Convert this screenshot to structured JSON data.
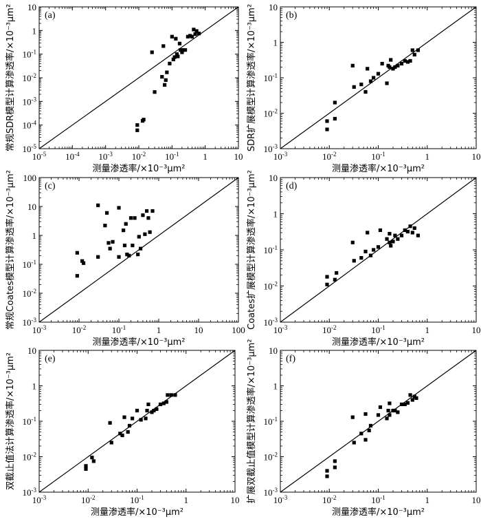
{
  "figure": {
    "axis_color": "#000000",
    "marker_color": "#000000",
    "reference_line": "1:1"
  },
  "chart_data": [
    {
      "type": "scatter",
      "panel_label": "(a)",
      "xlabel": "测量渗透率/×10⁻³μm²",
      "ylabel": "常规SDR模型计算渗透率/×10⁻³μm²",
      "x_exp_range": [
        -5,
        1
      ],
      "y_exp_range": [
        -5,
        1
      ],
      "x_ticks": [
        {
          "m": "10",
          "e": "-5"
        },
        {
          "m": "10",
          "e": "-4"
        },
        {
          "m": "10",
          "e": "-3"
        },
        {
          "m": "10",
          "e": "-2"
        },
        {
          "m": "10",
          "e": "-1"
        },
        {
          "m": "1",
          "e": ""
        },
        {
          "m": "10",
          "e": ""
        }
      ],
      "y_ticks": [
        {
          "m": "10",
          "e": "-5"
        },
        {
          "m": "10",
          "e": "-4"
        },
        {
          "m": "10",
          "e": "-3"
        },
        {
          "m": "10",
          "e": "-2"
        },
        {
          "m": "10",
          "e": "-1"
        },
        {
          "m": "1",
          "e": ""
        },
        {
          "m": "10",
          "e": ""
        }
      ],
      "points": [
        [
          0.009,
          6e-05
        ],
        [
          0.009,
          0.0001
        ],
        [
          0.013,
          0.00015
        ],
        [
          0.014,
          0.00017
        ],
        [
          0.025,
          0.12
        ],
        [
          0.03,
          0.0025
        ],
        [
          0.05,
          0.011
        ],
        [
          0.055,
          0.22
        ],
        [
          0.06,
          0.005
        ],
        [
          0.065,
          0.008
        ],
        [
          0.07,
          0.017
        ],
        [
          0.085,
          0.04
        ],
        [
          0.1,
          0.55
        ],
        [
          0.11,
          0.06
        ],
        [
          0.12,
          0.075
        ],
        [
          0.13,
          0.45
        ],
        [
          0.14,
          0.1
        ],
        [
          0.15,
          0.08
        ],
        [
          0.17,
          0.28
        ],
        [
          0.18,
          0.15
        ],
        [
          0.2,
          0.12
        ],
        [
          0.21,
          0.15
        ],
        [
          0.25,
          0.15
        ],
        [
          0.3,
          0.55
        ],
        [
          0.35,
          0.6
        ],
        [
          0.4,
          0.55
        ],
        [
          0.45,
          1.1
        ],
        [
          0.5,
          0.7
        ],
        [
          0.55,
          0.95
        ],
        [
          0.65,
          0.75
        ]
      ]
    },
    {
      "type": "scatter",
      "panel_label": "(b)",
      "xlabel": "测量渗透率/×10⁻³μm²",
      "ylabel": "SDR扩展模型计算渗透率/×10⁻³μm²",
      "x_exp_range": [
        -3,
        1
      ],
      "y_exp_range": [
        -3,
        1
      ],
      "x_ticks": [
        {
          "m": "10",
          "e": "-3"
        },
        {
          "m": "10",
          "e": "-2"
        },
        {
          "m": "10",
          "e": "-1"
        },
        {
          "m": "1",
          "e": ""
        },
        {
          "m": "10",
          "e": ""
        }
      ],
      "y_ticks": [
        {
          "m": "10",
          "e": "-3"
        },
        {
          "m": "10",
          "e": "-2"
        },
        {
          "m": "10",
          "e": "-1"
        },
        {
          "m": "1",
          "e": ""
        },
        {
          "m": "10",
          "e": ""
        }
      ],
      "points": [
        [
          0.009,
          0.0035
        ],
        [
          0.009,
          0.006
        ],
        [
          0.013,
          0.007
        ],
        [
          0.013,
          0.02
        ],
        [
          0.03,
          0.22
        ],
        [
          0.032,
          0.055
        ],
        [
          0.045,
          0.065
        ],
        [
          0.055,
          0.04
        ],
        [
          0.06,
          0.18
        ],
        [
          0.07,
          0.08
        ],
        [
          0.08,
          0.1
        ],
        [
          0.1,
          0.13
        ],
        [
          0.12,
          0.25
        ],
        [
          0.15,
          0.07
        ],
        [
          0.16,
          0.22
        ],
        [
          0.17,
          0.2
        ],
        [
          0.18,
          0.32
        ],
        [
          0.2,
          0.18
        ],
        [
          0.22,
          0.2
        ],
        [
          0.25,
          0.22
        ],
        [
          0.3,
          0.25
        ],
        [
          0.35,
          0.3
        ],
        [
          0.4,
          0.28
        ],
        [
          0.45,
          0.3
        ],
        [
          0.5,
          0.6
        ],
        [
          0.55,
          0.45
        ],
        [
          0.65,
          0.6
        ]
      ]
    },
    {
      "type": "scatter",
      "panel_label": "(c)",
      "xlabel": "测量渗透率/×10⁻³μm²",
      "ylabel": "常规Coates模型计算渗透率/×10⁻³μm²",
      "x_exp_range": [
        -3,
        2
      ],
      "y_exp_range": [
        -3,
        2
      ],
      "x_ticks": [
        {
          "m": "10",
          "e": "-3"
        },
        {
          "m": "10",
          "e": "-2"
        },
        {
          "m": "10",
          "e": "-1"
        },
        {
          "m": "1",
          "e": ""
        },
        {
          "m": "10",
          "e": ""
        },
        {
          "m": "100",
          "e": ""
        }
      ],
      "y_ticks": [
        {
          "m": "10",
          "e": "-3"
        },
        {
          "m": "10",
          "e": "-2"
        },
        {
          "m": "10",
          "e": "-1"
        },
        {
          "m": "1",
          "e": ""
        },
        {
          "m": "10",
          "e": ""
        },
        {
          "m": "100",
          "e": ""
        }
      ],
      "points": [
        [
          0.009,
          0.04
        ],
        [
          0.009,
          0.25
        ],
        [
          0.012,
          0.13
        ],
        [
          0.013,
          0.11
        ],
        [
          0.03,
          11
        ],
        [
          0.03,
          0.18
        ],
        [
          0.045,
          2.2
        ],
        [
          0.05,
          6
        ],
        [
          0.055,
          0.55
        ],
        [
          0.06,
          0.35
        ],
        [
          0.07,
          0.6
        ],
        [
          0.1,
          9
        ],
        [
          0.1,
          0.18
        ],
        [
          0.13,
          1.5
        ],
        [
          0.14,
          0.45
        ],
        [
          0.15,
          2.5
        ],
        [
          0.16,
          0.22
        ],
        [
          0.18,
          0.2
        ],
        [
          0.2,
          4
        ],
        [
          0.22,
          0.45
        ],
        [
          0.25,
          4
        ],
        [
          0.3,
          0.22
        ],
        [
          0.32,
          0.9
        ],
        [
          0.35,
          0.35
        ],
        [
          0.4,
          5
        ],
        [
          0.45,
          1.1
        ],
        [
          0.5,
          7
        ],
        [
          0.55,
          4
        ],
        [
          0.6,
          1.3
        ],
        [
          0.7,
          7
        ]
      ]
    },
    {
      "type": "scatter",
      "panel_label": "(d)",
      "xlabel": "测量渗透率/×10⁻³μm²",
      "ylabel": "Coates扩展模型计算渗透率/×10⁻³μm²",
      "x_exp_range": [
        -3,
        1
      ],
      "y_exp_range": [
        -3,
        1
      ],
      "x_ticks": [
        {
          "m": "10",
          "e": "-3"
        },
        {
          "m": "10",
          "e": "-2"
        },
        {
          "m": "10",
          "e": "-1"
        },
        {
          "m": "1",
          "e": ""
        },
        {
          "m": "10",
          "e": ""
        }
      ],
      "y_ticks": [
        {
          "m": "10",
          "e": "-3"
        },
        {
          "m": "10",
          "e": "-2"
        },
        {
          "m": "10",
          "e": "-1"
        },
        {
          "m": "1",
          "e": ""
        },
        {
          "m": "10",
          "e": ""
        }
      ],
      "points": [
        [
          0.009,
          0.011
        ],
        [
          0.009,
          0.018
        ],
        [
          0.013,
          0.015
        ],
        [
          0.014,
          0.023
        ],
        [
          0.03,
          0.16
        ],
        [
          0.032,
          0.05
        ],
        [
          0.045,
          0.06
        ],
        [
          0.055,
          0.09
        ],
        [
          0.06,
          0.3
        ],
        [
          0.07,
          0.07
        ],
        [
          0.08,
          0.1
        ],
        [
          0.1,
          0.12
        ],
        [
          0.11,
          0.35
        ],
        [
          0.15,
          0.2
        ],
        [
          0.17,
          0.16
        ],
        [
          0.17,
          0.28
        ],
        [
          0.18,
          0.13
        ],
        [
          0.2,
          0.17
        ],
        [
          0.22,
          0.25
        ],
        [
          0.25,
          0.2
        ],
        [
          0.3,
          0.25
        ],
        [
          0.35,
          0.35
        ],
        [
          0.4,
          0.32
        ],
        [
          0.45,
          0.45
        ],
        [
          0.5,
          0.3
        ],
        [
          0.55,
          0.4
        ],
        [
          0.65,
          0.25
        ]
      ]
    },
    {
      "type": "scatter",
      "panel_label": "(e)",
      "xlabel": "测量渗透率/×10⁻³μm²",
      "ylabel": "双截止值法计算渗透率/×10⁻³μm²",
      "x_exp_range": [
        -3,
        1
      ],
      "y_exp_range": [
        -3,
        1
      ],
      "x_ticks": [
        {
          "m": "10",
          "e": "-3"
        },
        {
          "m": "10",
          "e": "-2"
        },
        {
          "m": "10",
          "e": "-1"
        },
        {
          "m": "1",
          "e": ""
        },
        {
          "m": "10",
          "e": ""
        }
      ],
      "y_ticks": [
        {
          "m": "10",
          "e": "-3"
        },
        {
          "m": "10",
          "e": "-2"
        },
        {
          "m": "10",
          "e": "-1"
        },
        {
          "m": "1",
          "e": ""
        },
        {
          "m": "10",
          "e": ""
        }
      ],
      "points": [
        [
          0.009,
          0.0045
        ],
        [
          0.009,
          0.0055
        ],
        [
          0.012,
          0.0095
        ],
        [
          0.013,
          0.0075
        ],
        [
          0.028,
          0.09
        ],
        [
          0.03,
          0.025
        ],
        [
          0.045,
          0.045
        ],
        [
          0.05,
          0.04
        ],
        [
          0.055,
          0.13
        ],
        [
          0.065,
          0.05
        ],
        [
          0.07,
          0.075
        ],
        [
          0.08,
          0.12
        ],
        [
          0.1,
          0.2
        ],
        [
          0.12,
          0.11
        ],
        [
          0.15,
          0.12
        ],
        [
          0.16,
          0.2
        ],
        [
          0.17,
          0.3
        ],
        [
          0.2,
          0.18
        ],
        [
          0.22,
          0.2
        ],
        [
          0.25,
          0.22
        ],
        [
          0.3,
          0.3
        ],
        [
          0.35,
          0.32
        ],
        [
          0.4,
          0.35
        ],
        [
          0.42,
          0.55
        ],
        [
          0.5,
          0.55
        ],
        [
          0.6,
          0.55
        ]
      ]
    },
    {
      "type": "scatter",
      "panel_label": "(f)",
      "xlabel": "测量渗透率/×10⁻³μm²",
      "ylabel": "扩展双截止值模型计算渗透率/×10⁻³μm²",
      "x_exp_range": [
        -3,
        1
      ],
      "y_exp_range": [
        -3,
        1
      ],
      "x_ticks": [
        {
          "m": "10",
          "e": "-3"
        },
        {
          "m": "10",
          "e": "-2"
        },
        {
          "m": "10",
          "e": "-1"
        },
        {
          "m": "1",
          "e": ""
        },
        {
          "m": "10",
          "e": ""
        }
      ],
      "y_ticks": [
        {
          "m": "10",
          "e": "-3"
        },
        {
          "m": "10",
          "e": "-2"
        },
        {
          "m": "10",
          "e": "-1"
        },
        {
          "m": "1",
          "e": ""
        },
        {
          "m": "10",
          "e": ""
        }
      ],
      "points": [
        [
          0.009,
          0.0028
        ],
        [
          0.009,
          0.004
        ],
        [
          0.013,
          0.005
        ],
        [
          0.013,
          0.0075
        ],
        [
          0.03,
          0.13
        ],
        [
          0.032,
          0.025
        ],
        [
          0.045,
          0.045
        ],
        [
          0.055,
          0.03
        ],
        [
          0.055,
          0.16
        ],
        [
          0.065,
          0.055
        ],
        [
          0.07,
          0.075
        ],
        [
          0.1,
          0.15
        ],
        [
          0.11,
          0.25
        ],
        [
          0.15,
          0.12
        ],
        [
          0.16,
          0.2
        ],
        [
          0.17,
          0.15
        ],
        [
          0.17,
          0.32
        ],
        [
          0.2,
          0.2
        ],
        [
          0.22,
          0.2
        ],
        [
          0.25,
          0.18
        ],
        [
          0.3,
          0.3
        ],
        [
          0.35,
          0.3
        ],
        [
          0.4,
          0.33
        ],
        [
          0.45,
          0.55
        ],
        [
          0.5,
          0.4
        ],
        [
          0.55,
          0.5
        ],
        [
          0.6,
          0.45
        ]
      ]
    }
  ]
}
